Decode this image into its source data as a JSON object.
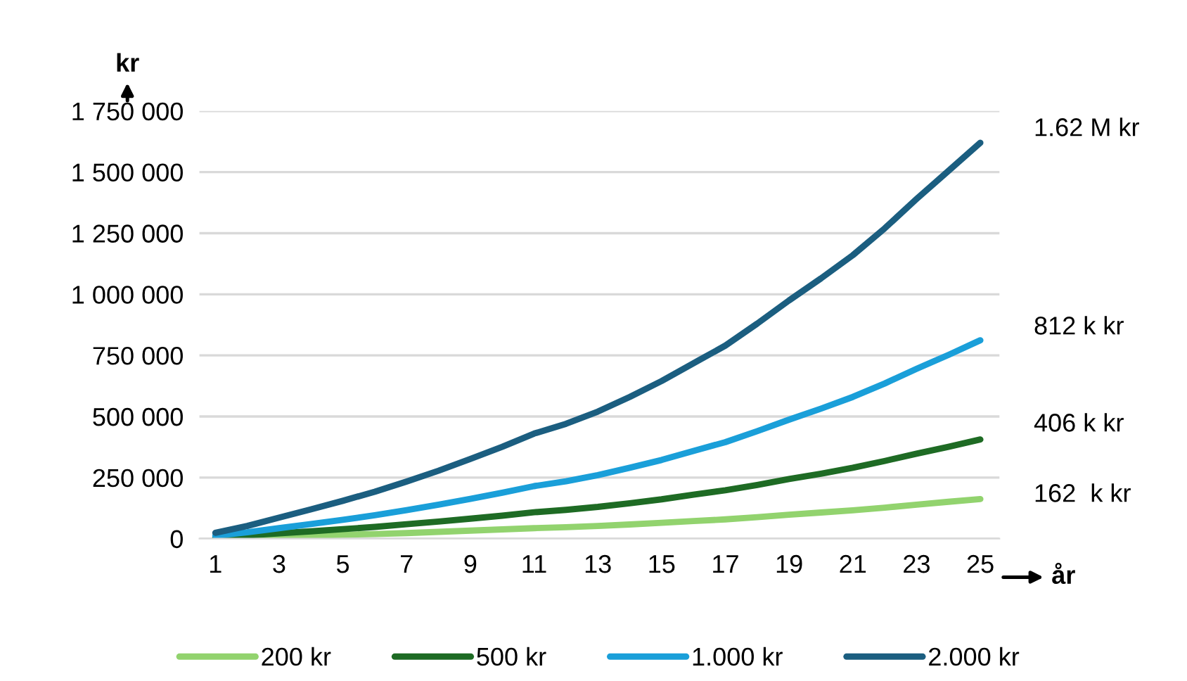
{
  "chart_data": {
    "type": "line",
    "xlabel": "år",
    "ylabel": "kr",
    "x": [
      1,
      2,
      3,
      4,
      5,
      6,
      7,
      8,
      9,
      10,
      11,
      12,
      13,
      14,
      15,
      16,
      17,
      18,
      19,
      20,
      21,
      22,
      23,
      24,
      25
    ],
    "series": [
      {
        "name": "200 kr",
        "color": "#92d36e",
        "values": [
          2000,
          5000,
          9000,
          12000,
          16000,
          19000,
          23000,
          28000,
          33000,
          38000,
          43000,
          47000,
          52000,
          58000,
          65000,
          72000,
          79000,
          88000,
          98000,
          107000,
          116000,
          127000,
          139000,
          151000,
          162000
        ]
      },
      {
        "name": "500 kr",
        "color": "#1e6b24",
        "values": [
          6000,
          13000,
          22000,
          30000,
          39000,
          48000,
          59000,
          70000,
          82000,
          94000,
          108000,
          118000,
          130000,
          145000,
          161000,
          180000,
          198000,
          220000,
          244000,
          266000,
          290000,
          318000,
          348000,
          376000,
          406000
        ]
      },
      {
        "name": "1.000 kr",
        "color": "#1a9fd9",
        "values": [
          12000,
          26000,
          43000,
          60000,
          77000,
          96000,
          117000,
          139000,
          163000,
          188000,
          215000,
          235000,
          260000,
          290000,
          322000,
          359000,
          395000,
          440000,
          487000,
          532000,
          580000,
          635000,
          695000,
          752000,
          812000
        ]
      },
      {
        "name": "2.000 kr",
        "color": "#1b5e80",
        "values": [
          24000,
          52000,
          86000,
          120000,
          155000,
          192000,
          234000,
          278000,
          326000,
          376000,
          430000,
          470000,
          520000,
          580000,
          645000,
          718000,
          790000,
          880000,
          975000,
          1065000,
          1160000,
          1270000,
          1390000,
          1505000,
          1620000
        ]
      }
    ],
    "xlim": [
      0.5,
      25.6
    ],
    "xticks": [
      1,
      3,
      5,
      7,
      9,
      11,
      13,
      15,
      17,
      19,
      21,
      23,
      25
    ],
    "ylim": [
      0,
      1750000
    ],
    "yticks": [
      {
        "value": 0,
        "label": "0"
      },
      {
        "value": 250000,
        "label": "250 000"
      },
      {
        "value": 500000,
        "label": "500 000"
      },
      {
        "value": 750000,
        "label": "750 000"
      },
      {
        "value": 1000000,
        "label": "1 000 000"
      },
      {
        "value": 1250000,
        "label": "1 250 000"
      },
      {
        "value": 1500000,
        "label": "1 500 000"
      },
      {
        "value": 1750000,
        "label": "1 750 000"
      }
    ],
    "annotations": [
      "1.62 M kr",
      "812 k kr",
      "406 k kr",
      "162  k kr"
    ],
    "grid": "y",
    "legend": "bottom",
    "marker": "none",
    "line_style": "solid"
  }
}
